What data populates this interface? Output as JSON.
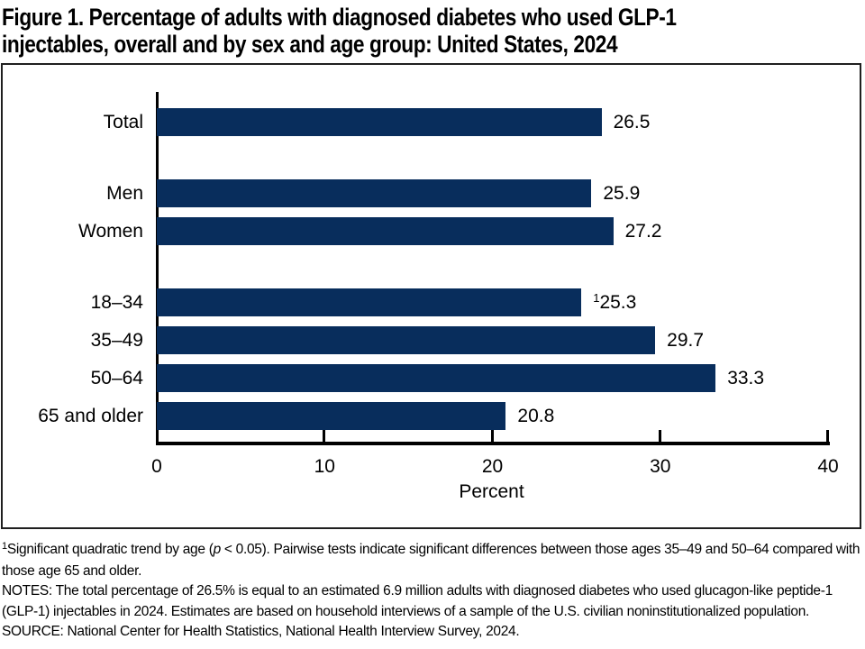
{
  "figure": {
    "title_line1": "Figure 1. Percentage of adults with diagnosed diabetes who used GLP-1",
    "title_line2": "injectables, overall and by sex and age group: United States, 2024"
  },
  "chart_data": {
    "type": "bar",
    "orientation": "horizontal",
    "xlabel": "Percent",
    "xlim": [
      0,
      40
    ],
    "xticks": [
      0,
      10,
      20,
      30,
      40
    ],
    "bar_color": "#082d5c",
    "axis_color": "#000000",
    "grid": false,
    "groups": [
      {
        "name": "overall",
        "rows": [
          {
            "label": "Total",
            "value": 26.5,
            "display": "26.5"
          }
        ]
      },
      {
        "name": "sex",
        "rows": [
          {
            "label": "Men",
            "value": 25.9,
            "display": "25.9"
          },
          {
            "label": "Women",
            "value": 27.2,
            "display": "27.2"
          }
        ]
      },
      {
        "name": "age-group",
        "rows": [
          {
            "label": "18–34",
            "value": 25.3,
            "display": "25.3",
            "footnote_marker": "1"
          },
          {
            "label": "35–49",
            "value": 29.7,
            "display": "29.7"
          },
          {
            "label": "50–64",
            "value": 33.3,
            "display": "33.3"
          },
          {
            "label": "65 and older",
            "value": 20.8,
            "display": "20.8"
          }
        ]
      }
    ]
  },
  "footnotes": {
    "footnote1_marker": "1",
    "footnote1_pre_italic": "Significant quadratic trend by age (",
    "footnote1_italic": "p",
    "footnote1_post_italic": " < 0.05). Pairwise tests indicate significant differences between those ages 35–49 and 50–64 compared with those age 65 and older.",
    "notes": "NOTES: The total percentage of 26.5% is equal to an estimated 6.9 million adults with diagnosed diabetes who used glucagon-like peptide-1 (GLP-1) injectables in 2024. Estimates are based on household interviews of a sample of the U.S. civilian noninstitutionalized population.",
    "source": "SOURCE: National Center for Health Statistics, National Health Interview Survey, 2024."
  }
}
